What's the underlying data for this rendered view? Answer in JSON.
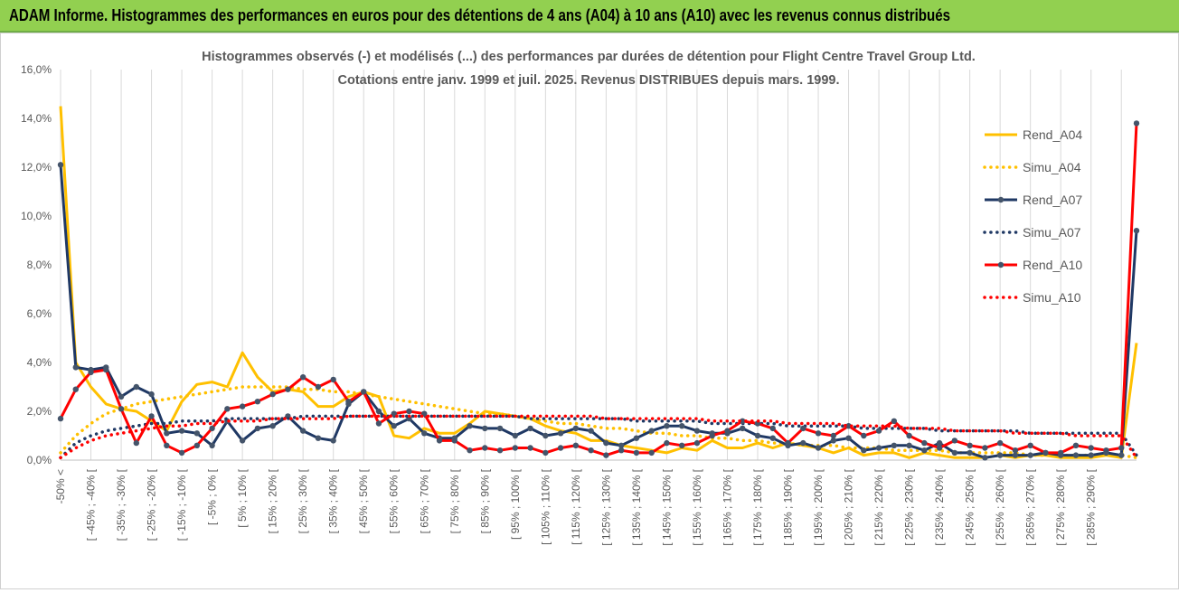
{
  "banner": {
    "title": "ADAM Informe. Histogrammes des performances en euros pour des détentions de 4 ans (A04) à 10 ans (A10) avec les revenus connus distribués"
  },
  "colors": {
    "banner_bg": "#92d050",
    "A04": "#ffc000",
    "A07": "#1f3864",
    "A10": "#ff0000",
    "grid": "#d9d9d9"
  },
  "chart_data": {
    "type": "line",
    "title_line1": "Histogrammes observés (-) et modélisés (...) des performances par durées de détention pour Flight Centre Travel Group Ltd.",
    "title_line2": "Cotations entre janv. 1999 et juil. 2025. Revenus DISTRIBUES depuis mars. 1999.",
    "ylim": [
      0,
      16
    ],
    "yticks": [
      "0,0%",
      "2,0%",
      "4,0%",
      "6,0%",
      "8,0%",
      "10,0%",
      "12,0%",
      "14,0%",
      "16,0%"
    ],
    "grid": "vertical",
    "legend_position": "right",
    "x_labels": [
      "-50% <",
      "[ -45% ; -40% [",
      "[ -35% ; -30% [",
      "[ -25% ; -20% [",
      "[ -15% ; -10% [",
      "[ -5% ; 0% [",
      "[ 5% ; 10% [",
      "[ 15% ; 20% [",
      "[ 25% ; 30% [",
      "[ 35% ; 40% [",
      "[ 45% ; 50% [",
      "[ 55% ; 60% [",
      "[ 65% ; 70% [",
      "[ 75% ; 80% [",
      "[ 85% ; 90% [",
      "[ 95% ; 100% [",
      "[ 105% ; 110% [",
      "[ 115% ; 120% [",
      "[ 125% ; 130% [",
      "[ 135% ; 140% [",
      "[ 145% ; 150% [",
      "[ 155% ; 160% [",
      "[ 165% ; 170% [",
      "[ 175% ; 180% [",
      "[ 185% ; 190% [",
      "[ 195% ; 200% [",
      "[ 205% ; 210% [",
      "[ 215% ; 220% [",
      "[ 225% ; 230% [",
      "[ 235% ; 240% [",
      "[ 245% ; 250% [",
      "[ 255% ; 260% [",
      "[ 265% ; 270% [",
      "[ 275% ; 280% [",
      "[ 285% ; 290% ["
    ],
    "series": [
      {
        "name": "Rend_A04",
        "style": "solid",
        "markers": false,
        "color": "#ffc000",
        "values": [
          14.5,
          4.0,
          3.0,
          2.3,
          2.1,
          2.0,
          1.6,
          1.2,
          2.4,
          3.1,
          3.2,
          3.0,
          4.4,
          3.4,
          2.8,
          2.9,
          2.8,
          2.2,
          2.2,
          2.6,
          2.8,
          2.6,
          1.0,
          0.9,
          1.3,
          1.1,
          1.1,
          1.5,
          2.0,
          1.9,
          1.8,
          1.7,
          1.4,
          1.2,
          1.1,
          0.8,
          0.8,
          0.6,
          0.5,
          0.4,
          0.3,
          0.5,
          0.4,
          0.8,
          0.5,
          0.5,
          0.7,
          0.5,
          0.7,
          0.6,
          0.5,
          0.3,
          0.5,
          0.2,
          0.3,
          0.3,
          0.1,
          0.3,
          0.2,
          0.1,
          0.1,
          0.1,
          0.2,
          0.1,
          0.2,
          0.2,
          0.1,
          0.1,
          0.1,
          0.2,
          0.1,
          4.8
        ]
      },
      {
        "name": "Simu_A04",
        "style": "dotted",
        "markers": false,
        "color": "#ffc000",
        "values": [
          0.3,
          1.0,
          1.5,
          1.9,
          2.1,
          2.3,
          2.4,
          2.5,
          2.6,
          2.7,
          2.8,
          2.9,
          3.0,
          3.0,
          3.0,
          3.0,
          2.9,
          2.9,
          2.8,
          2.8,
          2.7,
          2.6,
          2.5,
          2.4,
          2.3,
          2.2,
          2.1,
          2.0,
          1.9,
          1.9,
          1.8,
          1.7,
          1.6,
          1.5,
          1.5,
          1.4,
          1.3,
          1.3,
          1.2,
          1.1,
          1.1,
          1.0,
          1.0,
          0.9,
          0.9,
          0.8,
          0.8,
          0.7,
          0.7,
          0.6,
          0.6,
          0.6,
          0.5,
          0.5,
          0.5,
          0.4,
          0.4,
          0.4,
          0.4,
          0.3,
          0.3,
          0.3,
          0.3,
          0.3,
          0.2,
          0.2,
          0.2,
          0.2,
          0.2,
          0.2,
          0.2,
          0.1
        ]
      },
      {
        "name": "Rend_A07",
        "style": "solid",
        "markers": true,
        "color": "#1f3864",
        "values": [
          12.1,
          3.8,
          3.7,
          3.8,
          2.6,
          3.0,
          2.7,
          1.1,
          1.2,
          1.1,
          0.6,
          1.6,
          0.8,
          1.3,
          1.4,
          1.8,
          1.2,
          0.9,
          0.8,
          2.3,
          2.8,
          2.0,
          1.4,
          1.7,
          1.1,
          0.9,
          0.9,
          1.4,
          1.3,
          1.3,
          1.0,
          1.3,
          1.0,
          1.1,
          1.3,
          1.2,
          0.7,
          0.6,
          0.9,
          1.2,
          1.4,
          1.4,
          1.2,
          1.1,
          1.1,
          1.3,
          1.0,
          0.9,
          0.6,
          0.7,
          0.5,
          0.8,
          0.9,
          0.4,
          0.5,
          0.6,
          0.6,
          0.4,
          0.7,
          0.3,
          0.3,
          0.1,
          0.2,
          0.2,
          0.2,
          0.3,
          0.2,
          0.2,
          0.2,
          0.3,
          0.2,
          9.4
        ]
      },
      {
        "name": "Simu_A07",
        "style": "dotted",
        "markers": false,
        "color": "#1f3864",
        "values": [
          0.1,
          0.7,
          1.0,
          1.2,
          1.3,
          1.4,
          1.5,
          1.5,
          1.6,
          1.6,
          1.6,
          1.7,
          1.7,
          1.7,
          1.7,
          1.7,
          1.8,
          1.8,
          1.8,
          1.8,
          1.8,
          1.8,
          1.8,
          1.8,
          1.8,
          1.8,
          1.8,
          1.8,
          1.8,
          1.8,
          1.8,
          1.7,
          1.7,
          1.7,
          1.7,
          1.7,
          1.7,
          1.7,
          1.6,
          1.6,
          1.6,
          1.6,
          1.6,
          1.5,
          1.5,
          1.5,
          1.5,
          1.5,
          1.4,
          1.4,
          1.4,
          1.4,
          1.4,
          1.3,
          1.3,
          1.3,
          1.3,
          1.3,
          1.2,
          1.2,
          1.2,
          1.2,
          1.2,
          1.2,
          1.1,
          1.1,
          1.1,
          1.1,
          1.1,
          1.1,
          1.1,
          0.2
        ]
      },
      {
        "name": "Rend_A10",
        "style": "solid",
        "markers": true,
        "color": "#ff0000",
        "values": [
          1.7,
          2.9,
          3.6,
          3.7,
          2.1,
          0.7,
          1.8,
          0.6,
          0.3,
          0.6,
          1.3,
          2.1,
          2.2,
          2.4,
          2.7,
          2.9,
          3.4,
          3.0,
          3.3,
          2.4,
          2.8,
          1.5,
          1.9,
          2.0,
          1.9,
          0.8,
          0.8,
          0.4,
          0.5,
          0.4,
          0.5,
          0.5,
          0.3,
          0.5,
          0.6,
          0.4,
          0.2,
          0.4,
          0.3,
          0.3,
          0.7,
          0.6,
          0.7,
          1.0,
          1.2,
          1.6,
          1.5,
          1.3,
          0.7,
          1.3,
          1.1,
          1.0,
          1.4,
          1.0,
          1.2,
          1.6,
          1.0,
          0.7,
          0.5,
          0.8,
          0.6,
          0.5,
          0.7,
          0.4,
          0.6,
          0.3,
          0.3,
          0.6,
          0.5,
          0.4,
          0.5,
          13.8
        ]
      },
      {
        "name": "Simu_A10",
        "style": "dotted",
        "markers": false,
        "color": "#ff0000",
        "values": [
          0.1,
          0.5,
          0.8,
          1.0,
          1.1,
          1.2,
          1.3,
          1.4,
          1.4,
          1.5,
          1.5,
          1.6,
          1.6,
          1.6,
          1.7,
          1.7,
          1.7,
          1.7,
          1.7,
          1.8,
          1.8,
          1.8,
          1.8,
          1.8,
          1.8,
          1.8,
          1.8,
          1.8,
          1.8,
          1.8,
          1.8,
          1.8,
          1.8,
          1.8,
          1.8,
          1.8,
          1.7,
          1.7,
          1.7,
          1.7,
          1.7,
          1.7,
          1.7,
          1.6,
          1.6,
          1.6,
          1.6,
          1.6,
          1.5,
          1.5,
          1.5,
          1.5,
          1.4,
          1.4,
          1.4,
          1.4,
          1.3,
          1.3,
          1.3,
          1.2,
          1.2,
          1.2,
          1.2,
          1.1,
          1.1,
          1.1,
          1.1,
          1.0,
          1.0,
          1.0,
          1.0,
          0.1
        ]
      }
    ]
  }
}
